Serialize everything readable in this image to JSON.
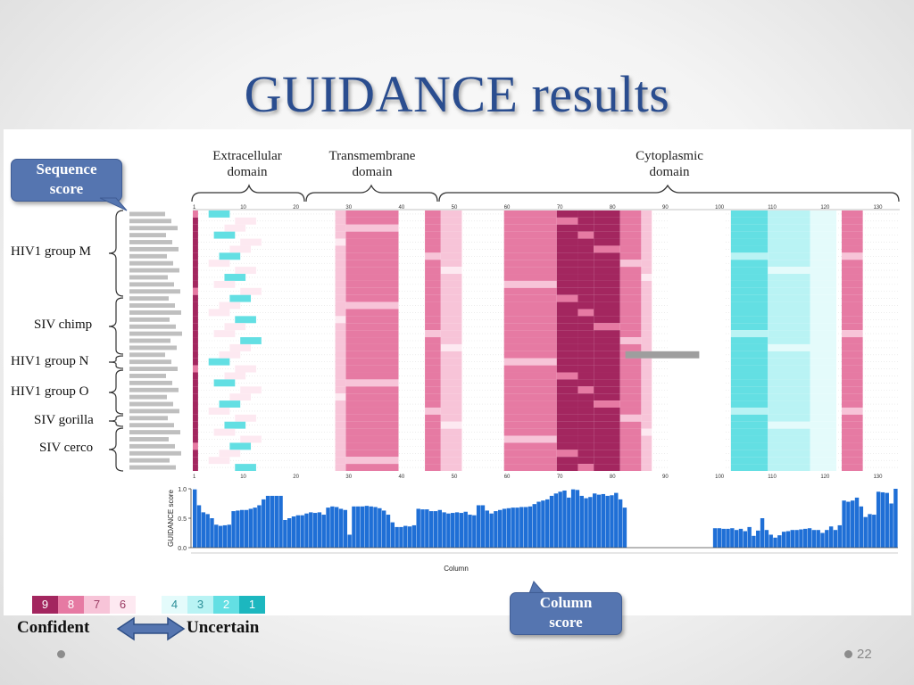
{
  "slide": {
    "title": "GUIDANCE results",
    "page_number": "22"
  },
  "domains": [
    {
      "label_line1": "Extracellular",
      "label_line2": "domain"
    },
    {
      "label_line1": "Transmembrane",
      "label_line2": "domain"
    },
    {
      "label_line1": "Cytoplasmic",
      "label_line2": "domain"
    }
  ],
  "callouts": {
    "sequence": {
      "line1": "Sequence",
      "line2": "score"
    },
    "column": {
      "line1": "Column",
      "line2": "score"
    }
  },
  "groups": [
    {
      "label": "HIV1 group M"
    },
    {
      "label": "SIV chimp"
    },
    {
      "label": "HIV1 group N"
    },
    {
      "label": "HIV1 group O"
    },
    {
      "label": "SIV gorilla"
    },
    {
      "label": "SIV cerco"
    }
  ],
  "legend": {
    "scale": [
      {
        "value": "9",
        "color": "#a3265f",
        "text_color": "#ffffff"
      },
      {
        "value": "8",
        "color": "#e67aa3",
        "text_color": "#ffffff"
      },
      {
        "value": "7",
        "color": "#f7c4d8",
        "text_color": "#9a3b63"
      },
      {
        "value": "6",
        "color": "#fde9f1",
        "text_color": "#9a3b63"
      },
      {
        "value": "",
        "color": "#ffffff",
        "text_color": "#ffffff"
      },
      {
        "value": "4",
        "color": "#e4fbfb",
        "text_color": "#2b8f98"
      },
      {
        "value": "3",
        "color": "#b9f3f4",
        "text_color": "#2b8f98"
      },
      {
        "value": "2",
        "color": "#63dfe3",
        "text_color": "#ffffff"
      },
      {
        "value": "1",
        "color": "#1cb7bf",
        "text_color": "#ffffff"
      }
    ],
    "left": "Confident",
    "right": "Uncertain"
  },
  "alignment": {
    "ticks": [
      "1",
      "10",
      "20",
      "30",
      "40",
      "50",
      "60",
      "70",
      "80",
      "90",
      "100",
      "110",
      "120",
      "130"
    ],
    "rows": 37
  },
  "chart_data": {
    "type": "bar",
    "xlabel": "Column",
    "ylabel": "GUIDANCE score",
    "yticks": [
      "0.0",
      "0.5",
      "1.0"
    ],
    "ylim": [
      0,
      1
    ],
    "bar_color": "#1f6fd6",
    "values": [
      0.99,
      0.72,
      0.6,
      0.57,
      0.5,
      0.39,
      0.37,
      0.38,
      0.39,
      0.62,
      0.63,
      0.64,
      0.64,
      0.66,
      0.68,
      0.72,
      0.82,
      0.88,
      0.88,
      0.88,
      0.88,
      0.47,
      0.5,
      0.53,
      0.55,
      0.55,
      0.58,
      0.6,
      0.59,
      0.6,
      0.56,
      0.68,
      0.7,
      0.69,
      0.66,
      0.64,
      0.22,
      0.7,
      0.7,
      0.7,
      0.71,
      0.7,
      0.69,
      0.67,
      0.63,
      0.56,
      0.43,
      0.35,
      0.35,
      0.37,
      0.36,
      0.38,
      0.66,
      0.65,
      0.65,
      0.62,
      0.62,
      0.64,
      0.6,
      0.58,
      0.59,
      0.6,
      0.59,
      0.61,
      0.56,
      0.55,
      0.72,
      0.72,
      0.63,
      0.58,
      0.62,
      0.64,
      0.66,
      0.67,
      0.68,
      0.68,
      0.69,
      0.69,
      0.7,
      0.74,
      0.78,
      0.8,
      0.82,
      0.88,
      0.92,
      0.95,
      0.97,
      0.85,
      0.99,
      0.98,
      0.88,
      0.84,
      0.86,
      0.92,
      0.9,
      0.91,
      0.88,
      0.89,
      0.93,
      0.82,
      0.68,
      0,
      0,
      0,
      0,
      0,
      0,
      0,
      0,
      0,
      0,
      0,
      0,
      0,
      0,
      0,
      0,
      0,
      0,
      0,
      0,
      0.33,
      0.33,
      0.32,
      0.32,
      0.33,
      0.3,
      0.32,
      0.28,
      0.35,
      0.2,
      0.29,
      0.5,
      0.3,
      0.22,
      0.17,
      0.21,
      0.27,
      0.28,
      0.3,
      0.3,
      0.31,
      0.32,
      0.33,
      0.3,
      0.3,
      0.25,
      0.3,
      0.36,
      0.3,
      0.38,
      0.8,
      0.78,
      0.8,
      0.85,
      0.7,
      0.52,
      0.57,
      0.56,
      0.95,
      0.94,
      0.93,
      0.75,
      1.0
    ]
  }
}
